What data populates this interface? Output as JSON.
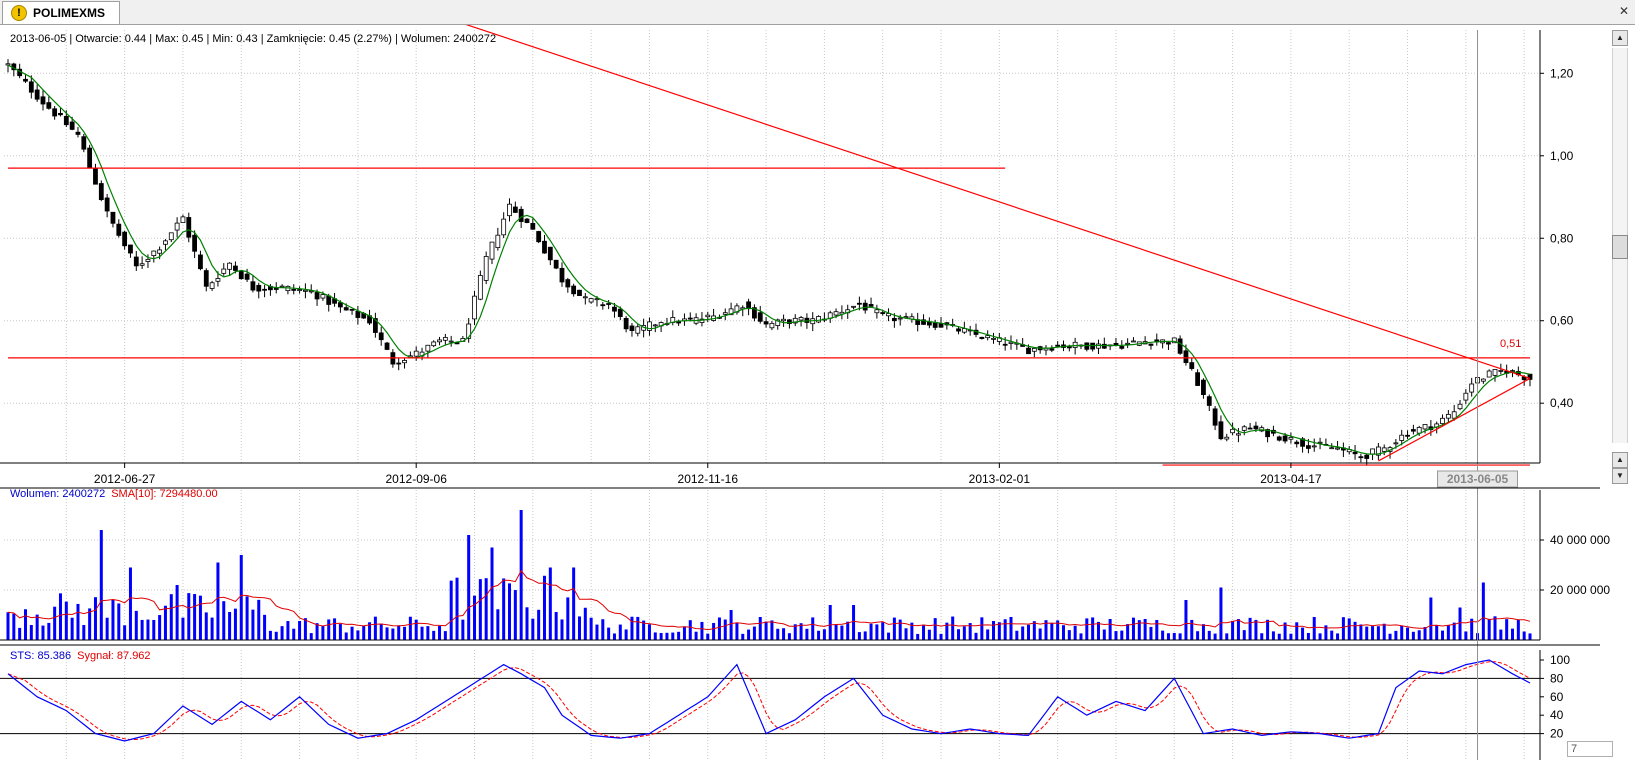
{
  "tab": {
    "label": "POLIMEXMS",
    "icon": "warning-icon"
  },
  "window": {
    "close_icon": "close-icon"
  },
  "info_line": "2013-06-05 | Otwarcie: 0.44 | Max: 0.45 | Min: 0.43 | Zamknięcie: 0.45 (2.27%)  | Wolumen: 2400272",
  "price_axis": {
    "ticks": [
      "1,20",
      "1,00",
      "0,80",
      "0,60",
      "0,40"
    ],
    "values": [
      1.2,
      1.0,
      0.8,
      0.6,
      0.4
    ],
    "ylim": [
      0.255,
      1.305
    ]
  },
  "x_axis": {
    "labels": [
      "2012-06-27",
      "2012-09-06",
      "2012-11-16",
      "2013-02-01",
      "2013-04-17"
    ],
    "label_index": [
      20,
      70,
      120,
      170,
      220
    ],
    "cursor_label": "2013-06-05"
  },
  "level_label": "0,51",
  "volume_panel": {
    "label_blue": "Wolumen: 2400272",
    "label_red": "SMA[10]: 7294480.00",
    "ticks": [
      "40 000 000",
      "20 000 000"
    ],
    "values": [
      40000000,
      20000000
    ]
  },
  "sts_panel": {
    "label_blue": "STS: 85.386",
    "label_red": "Sygnał: 87.962",
    "ticks": [
      "100",
      "80",
      "60",
      "40",
      "20"
    ],
    "values": [
      100,
      80,
      60,
      40,
      20
    ],
    "levels": [
      80,
      20
    ]
  },
  "zoom_value": "7",
  "colors": {
    "candle": "#000000",
    "sma": "#008000",
    "trend": "#ff0000",
    "volume": "#0000ff",
    "sts": "#0000ff",
    "signal": "#ff0000"
  },
  "chart_data": {
    "type": "candlestick",
    "n_sessions": 262,
    "price_points": [
      [
        0,
        1.22
      ],
      [
        6,
        1.13
      ],
      [
        12,
        1.05
      ],
      [
        17,
        0.86
      ],
      [
        22,
        0.73
      ],
      [
        26,
        0.78
      ],
      [
        30,
        0.85
      ],
      [
        34,
        0.68
      ],
      [
        38,
        0.74
      ],
      [
        42,
        0.68
      ],
      [
        47,
        0.68
      ],
      [
        52,
        0.67
      ],
      [
        57,
        0.63
      ],
      [
        62,
        0.6
      ],
      [
        66,
        0.5
      ],
      [
        70,
        0.52
      ],
      [
        74,
        0.55
      ],
      [
        78,
        0.55
      ],
      [
        82,
        0.75
      ],
      [
        86,
        0.88
      ],
      [
        90,
        0.82
      ],
      [
        95,
        0.7
      ],
      [
        99,
        0.65
      ],
      [
        103,
        0.64
      ],
      [
        107,
        0.57
      ],
      [
        112,
        0.6
      ],
      [
        117,
        0.6
      ],
      [
        121,
        0.61
      ],
      [
        126,
        0.64
      ],
      [
        130,
        0.59
      ],
      [
        134,
        0.6
      ],
      [
        138,
        0.6
      ],
      [
        142,
        0.62
      ],
      [
        146,
        0.64
      ],
      [
        150,
        0.61
      ],
      [
        155,
        0.6
      ],
      [
        160,
        0.59
      ],
      [
        165,
        0.57
      ],
      [
        170,
        0.55
      ],
      [
        175,
        0.53
      ],
      [
        180,
        0.54
      ],
      [
        185,
        0.54
      ],
      [
        190,
        0.54
      ],
      [
        195,
        0.55
      ],
      [
        200,
        0.55
      ],
      [
        204,
        0.45
      ],
      [
        208,
        0.32
      ],
      [
        213,
        0.34
      ],
      [
        218,
        0.32
      ],
      [
        223,
        0.3
      ],
      [
        228,
        0.29
      ],
      [
        232,
        0.27
      ],
      [
        236,
        0.29
      ],
      [
        240,
        0.33
      ],
      [
        245,
        0.35
      ],
      [
        248,
        0.38
      ],
      [
        251,
        0.45
      ],
      [
        254,
        0.47
      ],
      [
        257,
        0.48
      ],
      [
        261,
        0.46
      ]
    ],
    "sma_period": 5,
    "trend_lines": [
      {
        "from": [
          0,
          0.97
        ],
        "to": [
          171,
          0.97
        ]
      },
      {
        "from": [
          0,
          0.51
        ],
        "to": [
          261,
          0.51
        ]
      },
      {
        "from": [
          198,
          0.25
        ],
        "to": [
          261,
          0.25
        ]
      },
      {
        "from": [
          75,
          1.335
        ],
        "to": [
          261,
          0.46
        ]
      },
      {
        "from": [
          235,
          0.26
        ],
        "to": [
          261,
          0.46
        ]
      }
    ],
    "volume": {
      "units": "shares",
      "highlights": [
        [
          16,
          44000000
        ],
        [
          21,
          29000000
        ],
        [
          29,
          22000000
        ],
        [
          36,
          31000000
        ],
        [
          40,
          34000000
        ],
        [
          79,
          42000000
        ],
        [
          83,
          37000000
        ],
        [
          88,
          52000000
        ],
        [
          93,
          29000000
        ],
        [
          97,
          29000000
        ],
        [
          124,
          12000000
        ],
        [
          141,
          14000000
        ],
        [
          145,
          14000000
        ],
        [
          202,
          16000000
        ],
        [
          208,
          21000000
        ],
        [
          244,
          17000000
        ],
        [
          249,
          13000000
        ],
        [
          253,
          23000000
        ]
      ],
      "sma_period": 10
    },
    "sts": {
      "range": [
        0,
        100
      ],
      "levels": [
        80,
        20
      ],
      "points": [
        [
          0,
          85
        ],
        [
          5,
          60
        ],
        [
          10,
          45
        ],
        [
          15,
          20
        ],
        [
          20,
          12
        ],
        [
          25,
          20
        ],
        [
          30,
          50
        ],
        [
          35,
          30
        ],
        [
          40,
          55
        ],
        [
          45,
          35
        ],
        [
          50,
          60
        ],
        [
          55,
          30
        ],
        [
          60,
          15
        ],
        [
          65,
          20
        ],
        [
          70,
          35
        ],
        [
          75,
          55
        ],
        [
          80,
          75
        ],
        [
          85,
          95
        ],
        [
          88,
          85
        ],
        [
          92,
          70
        ],
        [
          95,
          40
        ],
        [
          100,
          18
        ],
        [
          105,
          15
        ],
        [
          110,
          20
        ],
        [
          115,
          40
        ],
        [
          120,
          60
        ],
        [
          125,
          95
        ],
        [
          130,
          20
        ],
        [
          135,
          35
        ],
        [
          140,
          60
        ],
        [
          145,
          80
        ],
        [
          150,
          40
        ],
        [
          155,
          25
        ],
        [
          160,
          20
        ],
        [
          165,
          25
        ],
        [
          170,
          20
        ],
        [
          175,
          18
        ],
        [
          180,
          60
        ],
        [
          185,
          40
        ],
        [
          190,
          55
        ],
        [
          195,
          45
        ],
        [
          200,
          80
        ],
        [
          205,
          20
        ],
        [
          210,
          25
        ],
        [
          215,
          18
        ],
        [
          220,
          22
        ],
        [
          225,
          20
        ],
        [
          230,
          15
        ],
        [
          235,
          20
        ],
        [
          238,
          70
        ],
        [
          242,
          88
        ],
        [
          246,
          85
        ],
        [
          250,
          95
        ],
        [
          254,
          100
        ],
        [
          258,
          85
        ],
        [
          261,
          75
        ]
      ],
      "signal_lag": 3
    }
  }
}
